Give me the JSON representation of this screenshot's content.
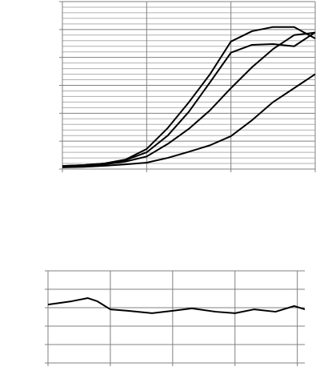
{
  "chart_data": [
    {
      "type": "line",
      "x": [
        0,
        0.25,
        0.5,
        0.75,
        1,
        1.25,
        1.5,
        1.75,
        2,
        2.25,
        2.5,
        2.75,
        3
      ],
      "series": [
        {
          "color": "#000000",
          "values": [
            0.11,
            0.14,
            0.2,
            0.34,
            0.72,
            1.47,
            2.39,
            3.39,
            4.57,
            4.94,
            5.09,
            5.09,
            4.68
          ]
        },
        {
          "color": "#000000",
          "values": [
            0.11,
            0.14,
            0.2,
            0.32,
            0.6,
            1.2,
            2.05,
            3.1,
            4.17,
            4.45,
            4.48,
            4.4,
            4.9
          ]
        },
        {
          "color": "#000000",
          "values": [
            0.09,
            0.12,
            0.17,
            0.27,
            0.45,
            0.9,
            1.44,
            2.1,
            2.9,
            3.65,
            4.3,
            4.8,
            4.89
          ]
        },
        {
          "color": "#000000",
          "values": [
            0.06,
            0.08,
            0.12,
            0.17,
            0.23,
            0.4,
            0.62,
            0.85,
            1.18,
            1.75,
            2.4,
            2.9,
            3.4
          ]
        }
      ],
      "xlim": [
        0,
        3
      ],
      "xticks": [
        0,
        1,
        2,
        3
      ],
      "ylim": [
        0,
        6
      ],
      "yticks": [
        0,
        1,
        2,
        3,
        4,
        5,
        6
      ],
      "grid": true,
      "minor_grid_divisions": 5
    },
    {
      "type": "line",
      "x": [
        0,
        0.38,
        0.64,
        0.79,
        1,
        1.28,
        1.67,
        2,
        2.31,
        2.69,
        3,
        3.31,
        3.65,
        3.95,
        4.12
      ],
      "series": [
        {
          "color": "#000000",
          "values": [
            3.17,
            3.35,
            3.52,
            3.35,
            2.91,
            2.83,
            2.7,
            2.83,
            2.96,
            2.78,
            2.7,
            2.91,
            2.78,
            3.09,
            2.91
          ]
        }
      ],
      "xlim": [
        0,
        4.12
      ],
      "xticks": [
        0,
        1,
        2,
        3,
        4
      ],
      "ylim": [
        0,
        5
      ],
      "yticks": [
        0,
        1,
        2,
        3,
        4,
        5
      ],
      "grid": true,
      "minor_grid_divisions": 1
    }
  ]
}
